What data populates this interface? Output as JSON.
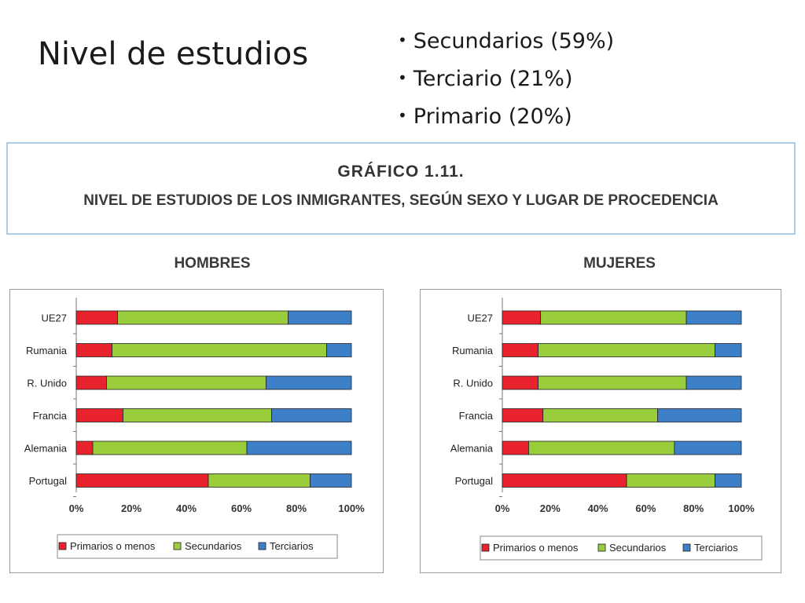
{
  "slide": {
    "title": "Nivel de estudios",
    "bullets": [
      "Secundarios (59%)",
      "Terciario (21%)",
      "Primario (20%)"
    ]
  },
  "banner": {
    "title": "GRÁFICO 1.11.",
    "subtitle": "NIVEL DE ESTUDIOS DE LOS INMIGRANTES, SEGÚN SEXO Y LUGAR DE PROCEDENCIA"
  },
  "colors": {
    "primarios": "#e8232d",
    "secundarios": "#9acd3c",
    "terciarios": "#3d7fc9"
  },
  "chart_data": [
    {
      "type": "bar",
      "orientation": "horizontal",
      "stacked": true,
      "title": "HOMBRES",
      "categories": [
        "UE27",
        "Rumania",
        "R. Unido",
        "Francia",
        "Alemania",
        "Portugal"
      ],
      "x_ticks": [
        "0%",
        "20%",
        "40%",
        "60%",
        "80%",
        "100%"
      ],
      "xlim": [
        0,
        100
      ],
      "series": [
        {
          "name": "Primarios o menos",
          "values": [
            15,
            13,
            11,
            17,
            6,
            48
          ]
        },
        {
          "name": "Secundarios",
          "values": [
            62,
            78,
            58,
            54,
            56,
            37
          ]
        },
        {
          "name": "Terciarios",
          "values": [
            23,
            9,
            31,
            29,
            38,
            15
          ]
        }
      ],
      "legend_position": "bottom"
    },
    {
      "type": "bar",
      "orientation": "horizontal",
      "stacked": true,
      "title": "MUJERES",
      "categories": [
        "UE27",
        "Rumania",
        "R. Unido",
        "Francia",
        "Alemania",
        "Portugal"
      ],
      "x_ticks": [
        "0%",
        "20%",
        "40%",
        "60%",
        "80%",
        "100%"
      ],
      "xlim": [
        0,
        100
      ],
      "series": [
        {
          "name": "Primarios o menos",
          "values": [
            16,
            15,
            15,
            17,
            11,
            52
          ]
        },
        {
          "name": "Secundarios",
          "values": [
            61,
            74,
            62,
            48,
            61,
            37
          ]
        },
        {
          "name": "Terciarios",
          "values": [
            23,
            11,
            23,
            35,
            28,
            11
          ]
        }
      ],
      "legend_position": "bottom"
    }
  ]
}
